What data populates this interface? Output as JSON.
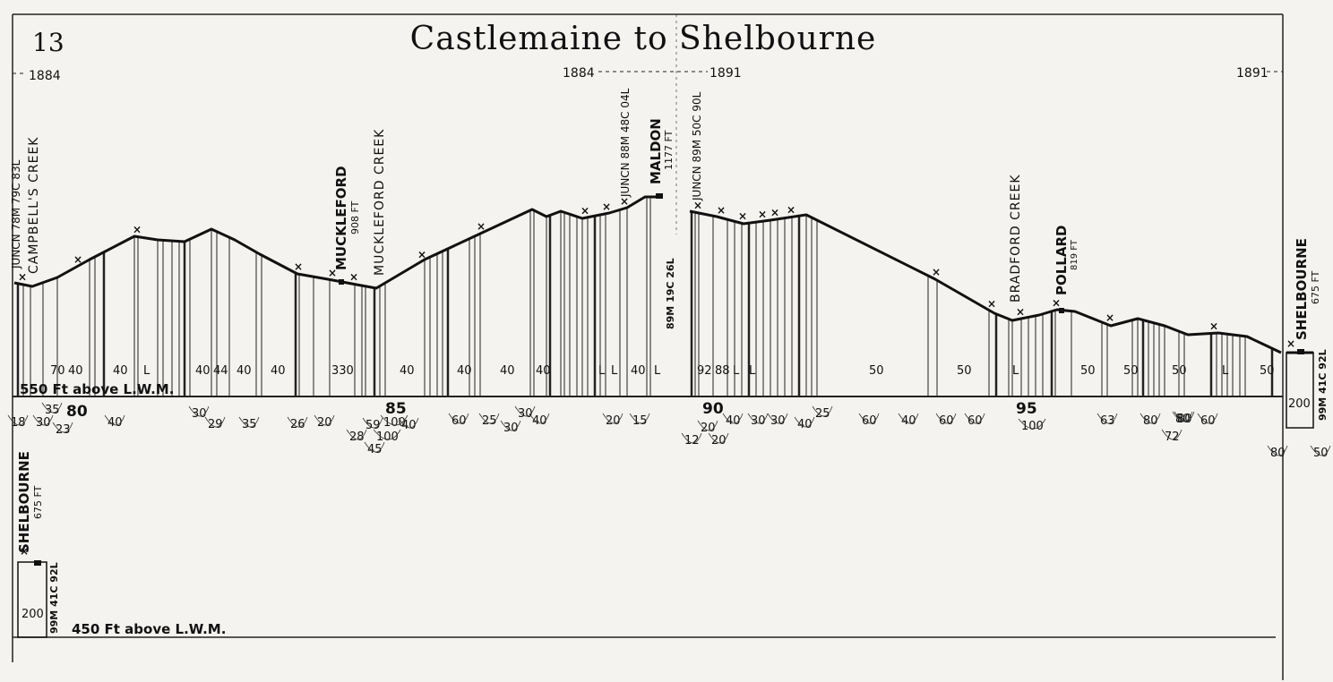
{
  "page_number": "13",
  "title": "Castlemaine to Shelbourne",
  "years": {
    "left": "1884",
    "mid_left": "1884",
    "mid_right": "1891",
    "right": "1891"
  },
  "datum": {
    "upper": "550 Ft above L.W.M.",
    "lower": "450 Ft above L.W.M."
  },
  "stations": {
    "junction_start": "JUNCN 78M 79C 83L",
    "campbells_creek": "CAMPBELL'S CREEK",
    "muckleford": "MUCKLEFORD",
    "muckleford_ht": "908 FT",
    "muckleford_creek": "MUCKLEFORD CREEK",
    "junction_maldon_1": "JUNCN 88M 48C 04L",
    "maldon": "MALDON",
    "maldon_ht": "1177 FT",
    "maldon_km": "89M 19C 26L",
    "junction_maldon_2": "JUNCN 89M 50C 90L",
    "bradford_creek": "BRADFORD CREEK",
    "pollard": "POLLARD",
    "pollard_ht": "819 FT",
    "shelbourne": "SHELBOURNE",
    "shelbourne_ht": "675 FT",
    "shelbourne_km": "99M 41C 92L"
  },
  "mileposts": [
    "80",
    "85",
    "90",
    "95"
  ],
  "gradients": [
    "70",
    "40",
    "40",
    "L",
    "40",
    "44",
    "40",
    "40",
    "330",
    "40",
    "40",
    "40",
    "40",
    "L",
    "L",
    "40",
    "L",
    "92",
    "88",
    "L",
    "L",
    "50",
    "50",
    "L",
    "50",
    "50",
    "50",
    "L",
    "50"
  ],
  "curves": [
    "18",
    "30",
    "35",
    "23",
    "40",
    "30",
    "29",
    "35",
    "26",
    "20",
    "59",
    "100",
    "40",
    "28",
    "100",
    "45",
    "60",
    "25",
    "30",
    "30",
    "40",
    "20",
    "15",
    "12",
    "20",
    "20",
    "40",
    "30",
    "30",
    "40",
    "25",
    "60",
    "40",
    "60",
    "60",
    "100",
    "63",
    "80",
    "80",
    "72",
    "60",
    "80",
    "50",
    "80"
  ],
  "end_box_value": "200"
}
